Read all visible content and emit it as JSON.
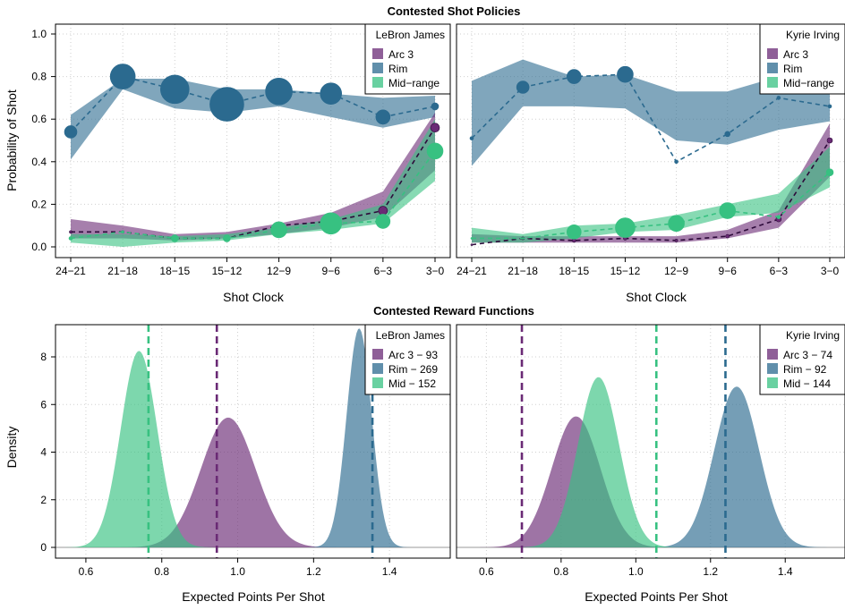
{
  "colors": {
    "arc3": "#6a2a75",
    "rim": "#2b6a8f",
    "mid": "#37c181"
  },
  "sections": {
    "policies_title": "Contested Shot Policies",
    "rewards_title": "Contested Reward Functions"
  },
  "axes": {
    "policy_ylabel": "Probability of Shot",
    "policy_xlabel": "Shot Clock",
    "reward_ylabel": "Density",
    "reward_xlabel": "Expected Points Per Shot"
  },
  "chart_data": [
    {
      "type": "line",
      "panel": "policy-lebron",
      "legend_title": "LeBron James",
      "legend": [
        "Arc 3",
        "Rim",
        "Mid−range"
      ],
      "categories": [
        "24−21",
        "21−18",
        "18−15",
        "15−12",
        "12−9",
        "9−6",
        "6−3",
        "3−0"
      ],
      "ylim": [
        0,
        1.0
      ],
      "yticks": [
        0.0,
        0.2,
        0.4,
        0.6,
        0.8,
        1.0
      ],
      "grid": true,
      "series": [
        {
          "name": "Rim",
          "color_key": "rim",
          "values": [
            0.54,
            0.8,
            0.74,
            0.67,
            0.73,
            0.72,
            0.61,
            0.66
          ],
          "band_low": [
            0.41,
            0.74,
            0.65,
            0.63,
            0.66,
            0.61,
            0.56,
            0.61
          ],
          "band_high": [
            0.62,
            0.79,
            0.79,
            0.74,
            0.74,
            0.72,
            0.7,
            0.71
          ],
          "sizes": [
            7,
            14,
            16,
            19,
            15,
            12,
            8,
            4
          ]
        },
        {
          "name": "Arc 3",
          "color_key": "arc3",
          "values": [
            0.07,
            0.07,
            0.04,
            0.04,
            0.1,
            0.12,
            0.17,
            0.56
          ],
          "band_low": [
            0.04,
            0.04,
            0.03,
            0.04,
            0.06,
            0.09,
            0.14,
            0.36
          ],
          "band_high": [
            0.13,
            0.1,
            0.06,
            0.07,
            0.11,
            0.16,
            0.26,
            0.63
          ],
          "sizes": [
            1.5,
            1.5,
            2,
            2,
            3,
            4,
            5,
            5
          ]
        },
        {
          "name": "Mid−range",
          "color_key": "mid",
          "values": [
            0.04,
            0.07,
            0.04,
            0.04,
            0.08,
            0.11,
            0.12,
            0.45
          ],
          "band_low": [
            0.02,
            0.0,
            0.02,
            0.03,
            0.06,
            0.08,
            0.11,
            0.31
          ],
          "band_high": [
            0.06,
            0.06,
            0.05,
            0.06,
            0.09,
            0.13,
            0.2,
            0.6
          ],
          "sizes": [
            2,
            1.5,
            4,
            4,
            9,
            12,
            8,
            9
          ]
        }
      ]
    },
    {
      "type": "line",
      "panel": "policy-kyrie",
      "legend_title": "Kyrie Irving",
      "legend": [
        "Arc 3",
        "Rim",
        "Mid−range"
      ],
      "categories": [
        "24−21",
        "21−18",
        "18−15",
        "15−12",
        "12−9",
        "9−6",
        "6−3",
        "3−0"
      ],
      "ylim": [
        0,
        1.0
      ],
      "yticks": [
        0.0,
        0.2,
        0.4,
        0.6,
        0.8,
        1.0
      ],
      "grid": true,
      "series": [
        {
          "name": "Rim",
          "color_key": "rim",
          "values": [
            0.51,
            0.75,
            0.8,
            0.81,
            0.4,
            0.53,
            0.7,
            0.66
          ],
          "band_low": [
            0.38,
            0.66,
            0.66,
            0.65,
            0.5,
            0.48,
            0.55,
            0.59
          ],
          "band_high": [
            0.78,
            0.88,
            0.8,
            0.81,
            0.73,
            0.73,
            0.8,
            0.72
          ],
          "sizes": [
            2,
            7,
            8,
            9,
            2,
            3,
            2,
            2
          ]
        },
        {
          "name": "Arc 3",
          "color_key": "arc3",
          "values": [
            0.01,
            0.04,
            0.03,
            0.04,
            0.03,
            0.05,
            0.13,
            0.5
          ],
          "band_low": [
            0.02,
            0.02,
            0.02,
            0.02,
            0.02,
            0.04,
            0.09,
            0.33
          ],
          "band_high": [
            0.06,
            0.05,
            0.05,
            0.05,
            0.05,
            0.08,
            0.17,
            0.58
          ],
          "sizes": [
            1,
            1.5,
            2,
            2,
            1.5,
            2,
            3,
            3
          ]
        },
        {
          "name": "Mid−range",
          "color_key": "mid",
          "values": [
            0.04,
            0.04,
            0.07,
            0.09,
            0.11,
            0.17,
            0.14,
            0.35
          ],
          "band_low": [
            0.02,
            0.02,
            0.04,
            0.07,
            0.08,
            0.14,
            0.16,
            0.28
          ],
          "band_high": [
            0.09,
            0.06,
            0.1,
            0.11,
            0.15,
            0.2,
            0.25,
            0.47
          ],
          "sizes": [
            1,
            1,
            8,
            11,
            9,
            9,
            2,
            4
          ]
        }
      ]
    },
    {
      "type": "area",
      "panel": "reward-lebron",
      "legend_title": "LeBron James",
      "xlim": [
        0.52,
        1.56
      ],
      "ylim": [
        0,
        9.3
      ],
      "xticks": [
        0.6,
        0.8,
        1.0,
        1.2,
        1.4
      ],
      "yticks": [
        0,
        2,
        4,
        6,
        8
      ],
      "grid": true,
      "series": [
        {
          "name": "Arc 3 − 93",
          "color_key": "arc3",
          "mean": 0.975,
          "sd": 0.072,
          "peak": 5.45,
          "dashed_line_x": 0.945
        },
        {
          "name": "Rim − 269",
          "color_key": "rim",
          "mean": 1.32,
          "sd": 0.033,
          "peak": 9.2,
          "dashed_line_x": 1.355
        },
        {
          "name": "Mid − 152",
          "color_key": "mid",
          "mean": 0.74,
          "sd": 0.048,
          "peak": 8.25,
          "dashed_line_x": 0.765
        }
      ]
    },
    {
      "type": "area",
      "panel": "reward-kyrie",
      "legend_title": "Kyrie Irving",
      "xlim": [
        0.52,
        1.56
      ],
      "ylim": [
        0,
        9.3
      ],
      "xticks": [
        0.6,
        0.8,
        1.0,
        1.2,
        1.4
      ],
      "yticks": [
        0,
        2,
        4,
        6,
        8
      ],
      "grid": true,
      "series": [
        {
          "name": "Arc 3 − 74",
          "color_key": "arc3",
          "mean": 0.84,
          "sd": 0.065,
          "peak": 5.5,
          "dashed_line_x": 0.695
        },
        {
          "name": "Rim − 92",
          "color_key": "rim",
          "mean": 1.27,
          "sd": 0.06,
          "peak": 6.75,
          "dashed_line_x": 1.24
        },
        {
          "name": "Mid − 144",
          "color_key": "mid",
          "mean": 0.9,
          "sd": 0.055,
          "peak": 7.15,
          "dashed_line_x": 1.055
        }
      ]
    }
  ]
}
